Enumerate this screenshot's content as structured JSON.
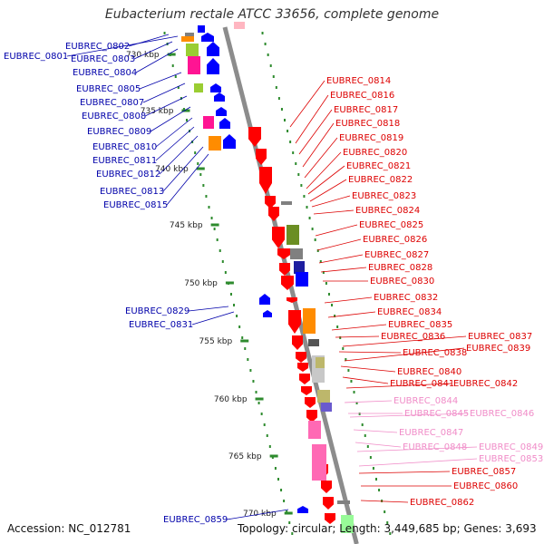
{
  "title": "Eubacterium rectale ATCC 33656, complete genome",
  "footer": {
    "accession": "Accession: NC_012781",
    "topology": "Topology: circular; Length: 3,449,685 bp; Genes: 3,693"
  },
  "scale_labels": [
    "730 kbp",
    "735 kbp",
    "740 kbp",
    "745 kbp",
    "750 kbp",
    "755 kbp",
    "760 kbp",
    "765 kbp",
    "770 kbp"
  ],
  "colors": {
    "backbone": "#8c8c8c",
    "tick": "#2e8b2e",
    "forward_label": "#0000aa",
    "reverse_label": "#dd0000",
    "pink_label": "#f08cc8",
    "blue": "#0000ff",
    "red": "#ff0000",
    "orange": "#ff8c00",
    "pink": "#ff69b4",
    "magenta": "#ff1493",
    "lime": "#9acd32",
    "olive": "#6b8e23",
    "gray": "#808080",
    "navy": "#1e1ea0"
  },
  "forward_genes": [
    "EUBREC_0801",
    "EUBREC_0802",
    "EUBREC_0803",
    "EUBREC_0804",
    "EUBREC_0805",
    "EUBREC_0807",
    "EUBREC_0808",
    "EUBREC_0809",
    "EUBREC_0810",
    "EUBREC_0811",
    "EUBREC_0812",
    "EUBREC_0813",
    "EUBREC_0815",
    "EUBREC_0829",
    "EUBREC_0831",
    "EUBREC_0859"
  ],
  "reverse_genes": [
    "EUBREC_0814",
    "EUBREC_0816",
    "EUBREC_0817",
    "EUBREC_0818",
    "EUBREC_0819",
    "EUBREC_0820",
    "EUBREC_0821",
    "EUBREC_0822",
    "EUBREC_0823",
    "EUBREC_0824",
    "EUBREC_0825",
    "EUBREC_0826",
    "EUBREC_0827",
    "EUBREC_0828",
    "EUBREC_0830",
    "EUBREC_0832",
    "EUBREC_0834",
    "EUBREC_0835",
    "EUBREC_0836",
    "EUBREC_0837",
    "EUBREC_0838",
    "EUBREC_0839",
    "EUBREC_0840",
    "EUBREC_0841",
    "EUBREC_0842",
    "EUBREC_0844",
    "EUBREC_0845",
    "EUBREC_0846",
    "EUBREC_0847",
    "EUBREC_0848",
    "EUBREC_0849",
    "EUBREC_0853",
    "EUBREC_0857",
    "EUBREC_0860",
    "EUBREC_0862"
  ]
}
